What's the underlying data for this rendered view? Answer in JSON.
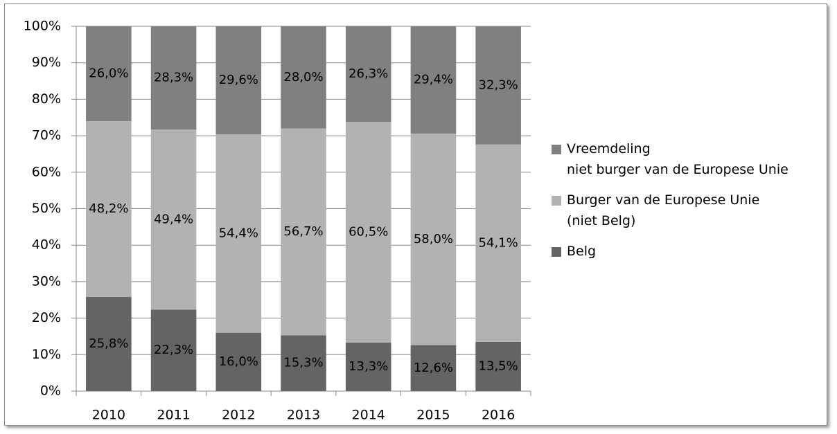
{
  "chart_data": {
    "type": "stacked_bar",
    "categories": [
      "2010",
      "2011",
      "2012",
      "2013",
      "2014",
      "2015",
      "2016"
    ],
    "series": [
      {
        "name": "Belg",
        "color": "#646464",
        "values": [
          25.8,
          22.3,
          16.0,
          15.3,
          13.3,
          12.6,
          13.5
        ],
        "value_labels": [
          "25,8%",
          "22,3%",
          "16,0%",
          "15,3%",
          "13,3%",
          "12,6%",
          "13,5%"
        ]
      },
      {
        "name": "Burger van de Europese Unie\n(niet Belg)",
        "color": "#b2b2b2",
        "values": [
          48.2,
          49.4,
          54.4,
          56.7,
          60.5,
          58.0,
          54.1
        ],
        "value_labels": [
          "48,2%",
          "49,4%",
          "54,4%",
          "56,7%",
          "60,5%",
          "58,0%",
          "54,1%"
        ]
      },
      {
        "name": "Vreemdeling\nniet burger van de Europese Unie",
        "color": "#808080",
        "values": [
          26.0,
          28.3,
          29.6,
          28.0,
          26.3,
          29.4,
          32.3
        ],
        "value_labels": [
          "26,0%",
          "28,3%",
          "29,6%",
          "28,0%",
          "26,3%",
          "29,4%",
          "32,3%"
        ]
      }
    ],
    "ylim": [
      0,
      100
    ],
    "yticks": [
      {
        "value": 0,
        "label": "0%"
      },
      {
        "value": 10,
        "label": "10%"
      },
      {
        "value": 20,
        "label": "20%"
      },
      {
        "value": 30,
        "label": "30%"
      },
      {
        "value": 40,
        "label": "40%"
      },
      {
        "value": 50,
        "label": "50%"
      },
      {
        "value": 60,
        "label": "60%"
      },
      {
        "value": 70,
        "label": "70%"
      },
      {
        "value": 80,
        "label": "80%"
      },
      {
        "value": 90,
        "label": "90%"
      },
      {
        "value": 100,
        "label": "100%"
      }
    ],
    "grid": true,
    "legend": "right"
  }
}
